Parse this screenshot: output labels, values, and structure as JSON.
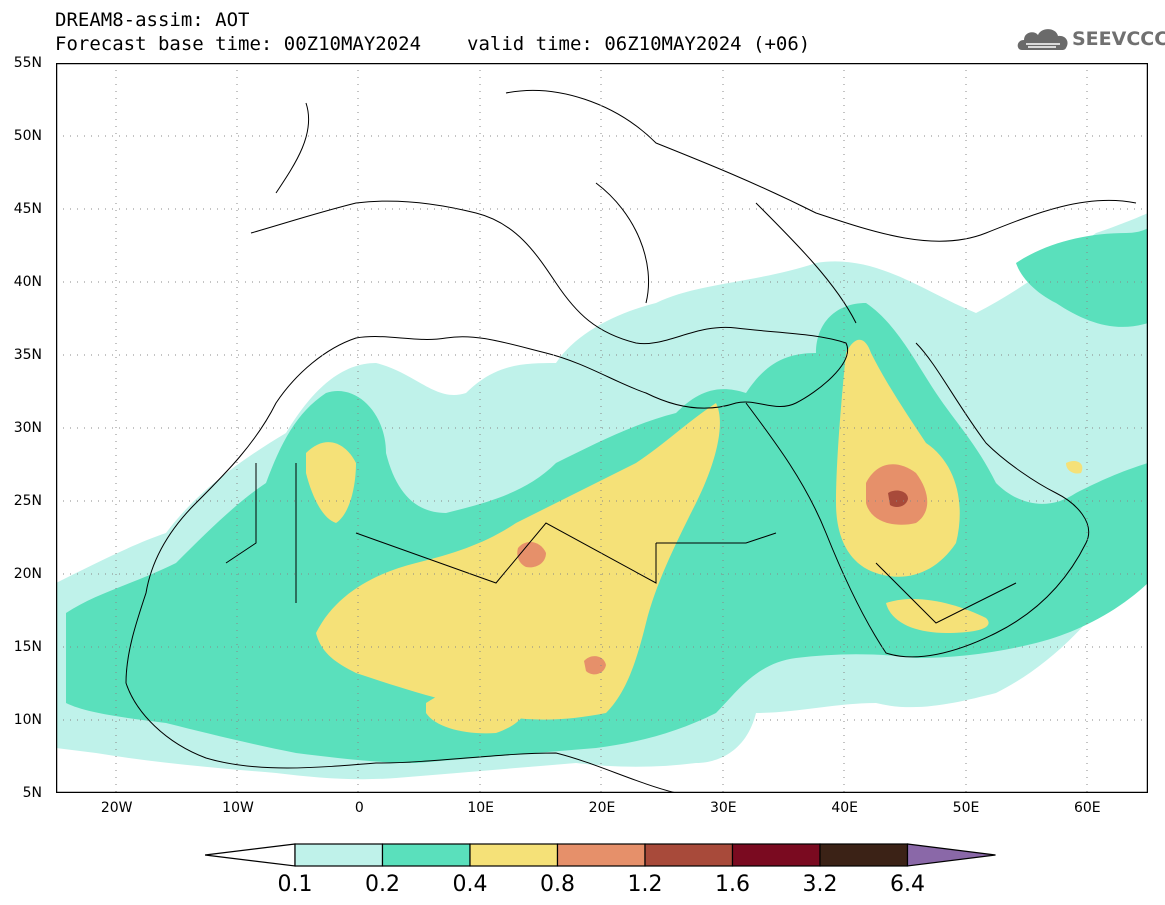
{
  "header": {
    "title": "DREAM8-assim: AOT",
    "base_time": "Forecast base time: 00Z10MAY2024",
    "valid_time": "valid time: 06Z10MAY2024 (+06)"
  },
  "logo": {
    "text": "SEEVCCC",
    "icon": "cloud-icon"
  },
  "map": {
    "lat_labels": [
      "55N",
      "50N",
      "45N",
      "40N",
      "35N",
      "30N",
      "25N",
      "20N",
      "15N",
      "10N",
      "5N"
    ],
    "lon_labels": [
      "20W",
      "10W",
      "0",
      "10E",
      "20E",
      "30E",
      "40E",
      "50E",
      "60E"
    ],
    "lat_range": [
      5,
      55
    ],
    "lon_range": [
      -25,
      65
    ],
    "grid": "dotted"
  },
  "colorbar": {
    "levels": [
      "0.1",
      "0.2",
      "0.4",
      "0.8",
      "1.2",
      "1.6",
      "3.2",
      "6.4"
    ],
    "colors": {
      "below": "#ffffff",
      "c1": "#bff2ea",
      "c2": "#5ae0bc",
      "c3": "#f5e178",
      "c4": "#e6906a",
      "c5": "#a84a3a",
      "c6": "#7a0a20",
      "c7": "#3b2216",
      "above": "#8a68a8"
    }
  }
}
